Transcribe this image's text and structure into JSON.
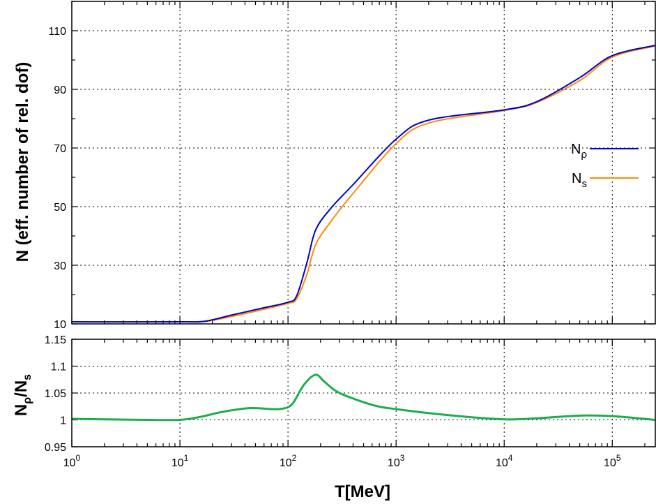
{
  "chart_data": [
    {
      "type": "line",
      "xscale": "log",
      "xlim": [
        1,
        250000
      ],
      "ylim": [
        10,
        120
      ],
      "ylabel": "N (eff. number of rel. dof)",
      "yticks": [
        10,
        30,
        50,
        70,
        90,
        110
      ],
      "grid": true,
      "legend_position": "right",
      "series": [
        {
          "name": "N_ρ",
          "label_main": "N",
          "label_sub": "ρ",
          "color": "#0000cc",
          "x": [
            1,
            10,
            17,
            30,
            60,
            100,
            120,
            150,
            180,
            250,
            400,
            1000,
            2000,
            10000,
            20000,
            50000,
            100000,
            250000
          ],
          "y": [
            10.7,
            10.7,
            10.9,
            13.0,
            15.5,
            17.4,
            19.5,
            31.0,
            42.0,
            49.5,
            57.5,
            73.0,
            79.5,
            83.0,
            85.8,
            94.0,
            101.5,
            105.0
          ]
        },
        {
          "name": "N_s",
          "label_main": "N",
          "label_sub": "s",
          "color": "#ff8c00",
          "x": [
            1,
            10,
            17,
            30,
            60,
            100,
            120,
            150,
            180,
            250,
            400,
            1000,
            2000,
            10000,
            20000,
            50000,
            100000,
            250000
          ],
          "y": [
            10.7,
            10.7,
            10.8,
            12.5,
            15.0,
            17.0,
            18.5,
            27.0,
            37.0,
            45.0,
            54.5,
            71.5,
            78.5,
            82.8,
            85.5,
            93.0,
            101.0,
            104.8
          ]
        }
      ]
    },
    {
      "type": "line",
      "xscale": "log",
      "xlim": [
        1,
        250000
      ],
      "ylim": [
        0.95,
        1.15
      ],
      "xlabel": "T[MeV]",
      "ylabel_main": "N",
      "ylabel_sub1": "ρ",
      "ylabel_mid": "/N",
      "ylabel_sub2": "s",
      "yticks": [
        0.95,
        1,
        1.05,
        1.1,
        1.15
      ],
      "ytick_labels": [
        "0.95",
        "1",
        "1.05",
        "1.1",
        "1.15"
      ],
      "xtick_labels": [
        {
          "base": "10",
          "exp": "0"
        },
        {
          "base": "10",
          "exp": "1"
        },
        {
          "base": "10",
          "exp": "2"
        },
        {
          "base": "10",
          "exp": "3"
        },
        {
          "base": "10",
          "exp": "4"
        },
        {
          "base": "10",
          "exp": "5"
        }
      ],
      "grid": true,
      "series": [
        {
          "color": "#1aaf4b",
          "x": [
            1,
            5,
            10,
            15,
            25,
            45,
            70,
            90,
            110,
            140,
            180,
            220,
            300,
            600,
            1000,
            3000,
            10000,
            20000,
            50000,
            100000,
            250000
          ],
          "y": [
            1.002,
            1.0,
            1.0,
            1.005,
            1.015,
            1.022,
            1.02,
            1.021,
            1.03,
            1.065,
            1.084,
            1.07,
            1.05,
            1.028,
            1.02,
            1.009,
            1.001,
            1.003,
            1.008,
            1.007,
            1.0
          ]
        }
      ]
    }
  ]
}
